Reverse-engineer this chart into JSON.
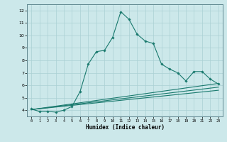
{
  "xlabel": "Humidex (Indice chaleur)",
  "bg_color": "#cce8ea",
  "grid_color": "#aad0d4",
  "line_color": "#1a7a6e",
  "xlim": [
    -0.5,
    23.5
  ],
  "ylim": [
    3.5,
    12.5
  ],
  "xticks": [
    0,
    1,
    2,
    3,
    4,
    5,
    6,
    7,
    8,
    9,
    10,
    11,
    12,
    13,
    14,
    15,
    16,
    17,
    18,
    19,
    20,
    21,
    22,
    23
  ],
  "yticks": [
    4,
    5,
    6,
    7,
    8,
    9,
    10,
    11,
    12
  ],
  "line1_x": [
    0,
    1,
    2,
    3,
    4,
    5,
    6,
    7,
    8,
    9,
    10,
    11,
    12,
    13,
    14,
    15,
    16,
    17,
    18,
    19,
    20,
    21,
    22,
    23
  ],
  "line1_y": [
    4.1,
    3.9,
    3.9,
    3.85,
    4.0,
    4.3,
    5.5,
    7.7,
    8.7,
    8.8,
    9.85,
    11.9,
    11.3,
    10.1,
    9.55,
    9.35,
    7.7,
    7.3,
    7.0,
    6.35,
    7.1,
    7.1,
    6.5,
    6.1
  ],
  "line2_x": [
    0,
    23
  ],
  "line2_y": [
    4.05,
    6.15
  ],
  "line3_x": [
    0,
    23
  ],
  "line3_y": [
    4.05,
    5.85
  ],
  "line4_x": [
    0,
    23
  ],
  "line4_y": [
    4.05,
    5.6
  ]
}
